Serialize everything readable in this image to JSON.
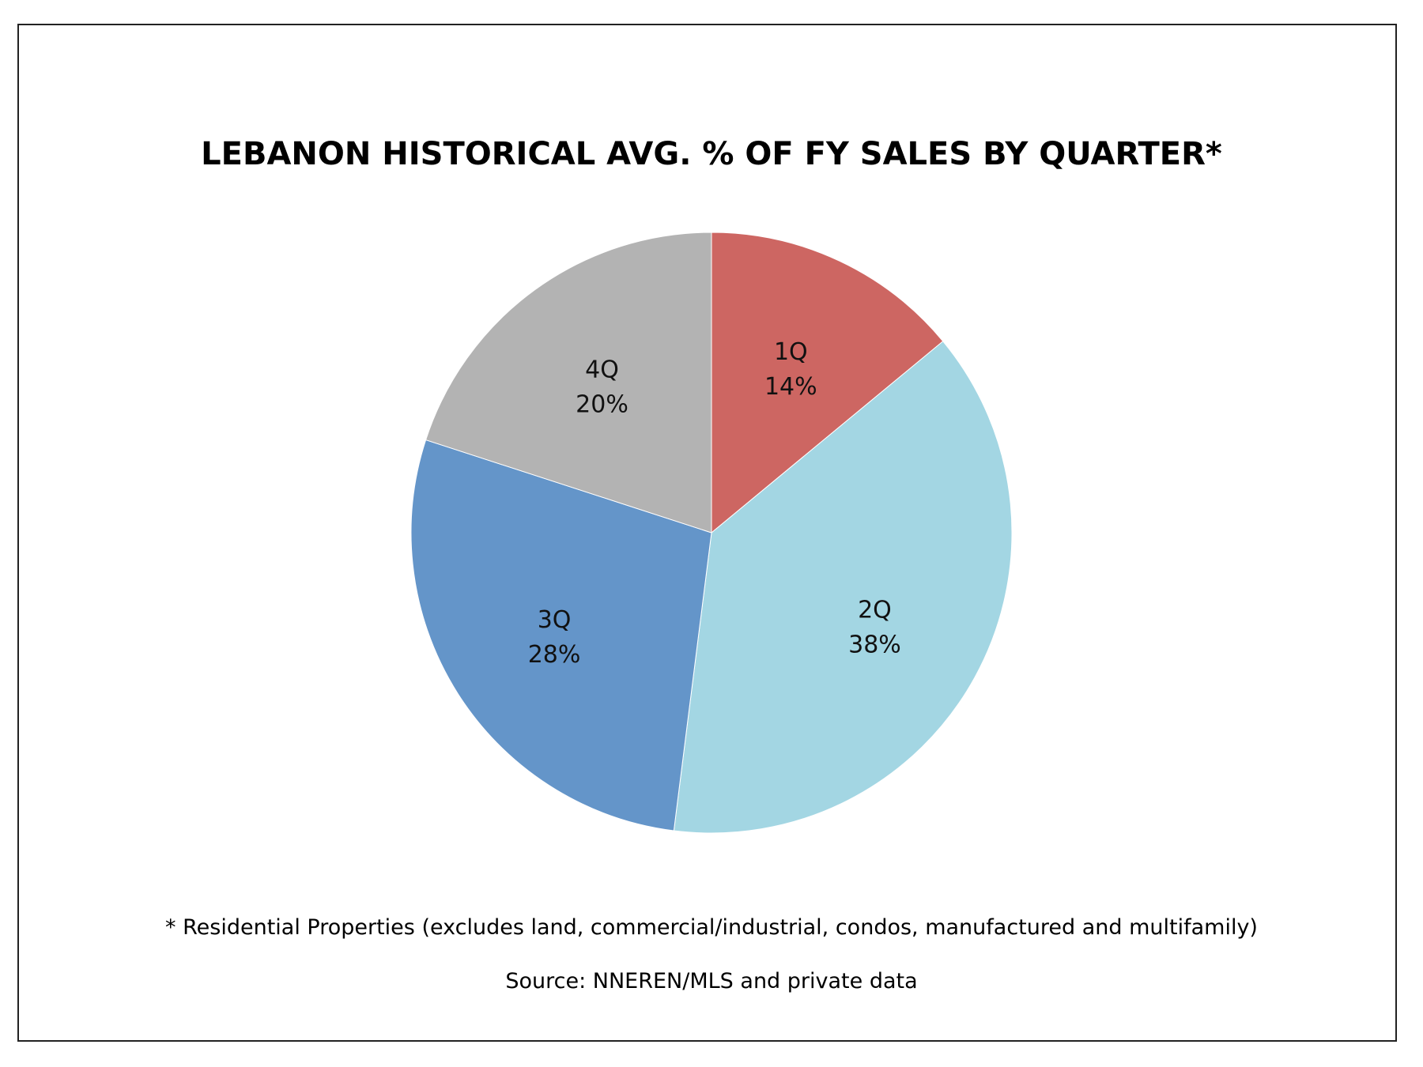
{
  "chart_data": {
    "type": "pie",
    "title": "LEBANON HISTORICAL AVG. % OF FY SALES BY QUARTER*",
    "categories": [
      "1Q",
      "2Q",
      "3Q",
      "4Q"
    ],
    "values": [
      14,
      38,
      28,
      20
    ],
    "value_labels": [
      "14%",
      "38%",
      "28%",
      "20%"
    ],
    "colors": [
      "#cd6662",
      "#a3d6e3",
      "#6495c9",
      "#b3b3b3"
    ],
    "start_angle": "12 o'clock",
    "direction": "clockwise",
    "legend": "none",
    "footnote": "* Residential Properties (excludes land, commercial/industrial, condos, manufactured and multifamily)",
    "source": "Source: NNEREN/MLS and private data"
  }
}
